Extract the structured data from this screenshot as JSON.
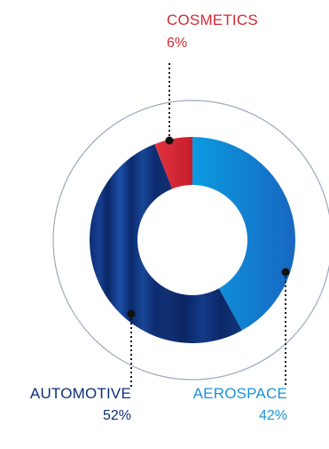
{
  "chart_data": {
    "type": "pie",
    "variant": "donut",
    "slices": [
      {
        "label": "AEROSPACE",
        "value": 42,
        "value_label": "42%",
        "color": "#1588d8"
      },
      {
        "label": "AUTOMOTIVE",
        "value": 52,
        "value_label": "52%",
        "color": "#0f2f78"
      },
      {
        "label": "COSMETICS",
        "value": 6,
        "value_label": "6%",
        "color": "#d42a35"
      }
    ],
    "order": "clockwise from top",
    "title": "",
    "legend": "none",
    "label_colors": {
      "COSMETICS": "#d42a35",
      "AUTOMOTIVE": "#0f2f78",
      "AEROSPACE": "#1b93d9"
    },
    "outer_ring_color": "#9aa8be"
  }
}
